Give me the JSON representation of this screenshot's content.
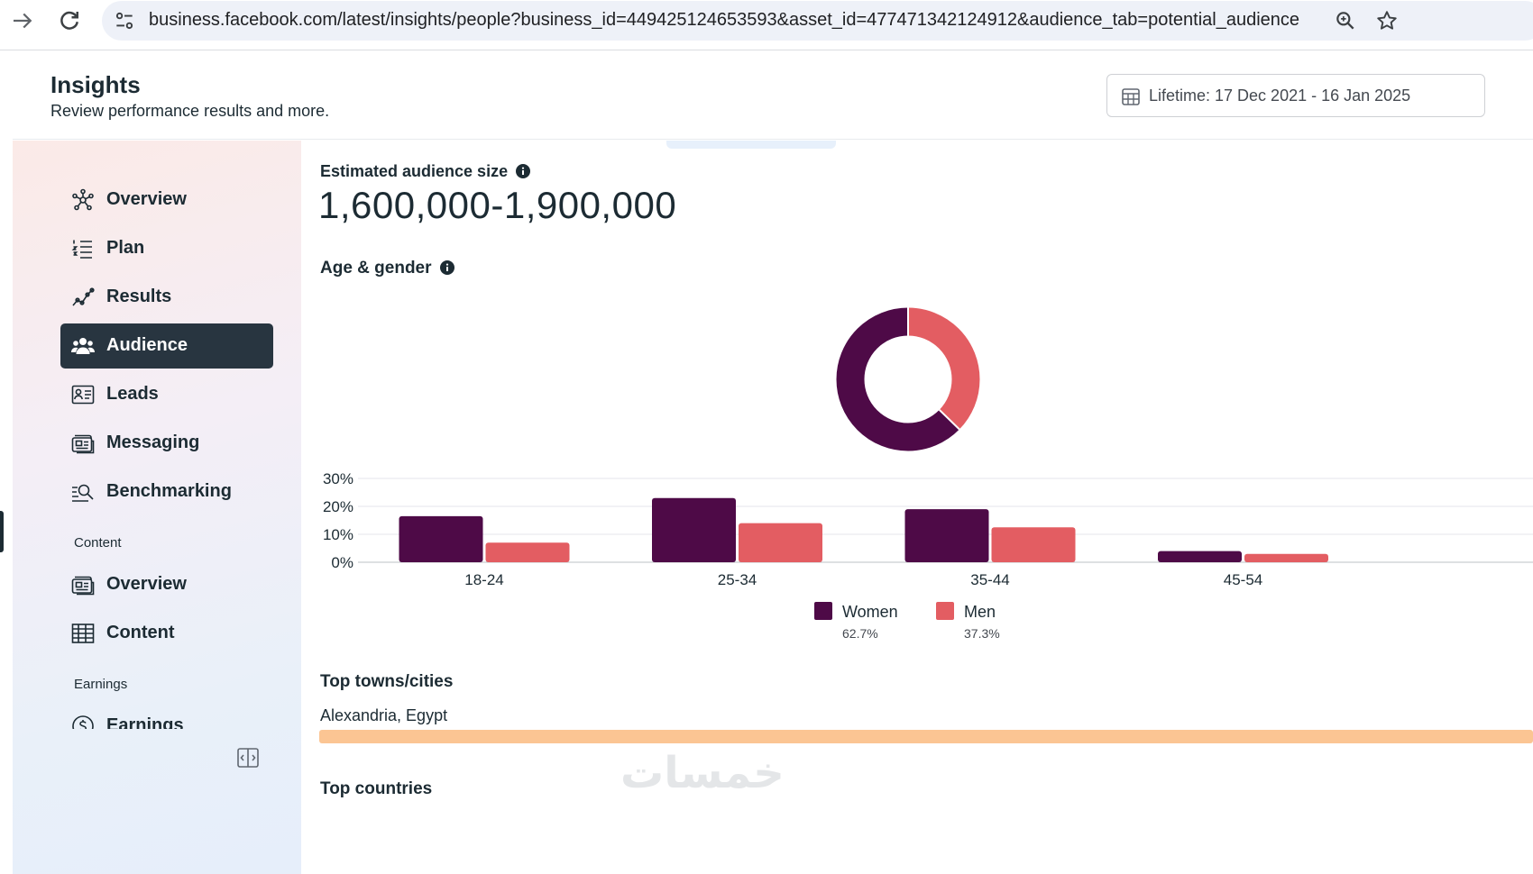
{
  "browser": {
    "url": "business.facebook.com/latest/insights/people?business_id=449425124653593&asset_id=477471342124912&audience_tab=potential_audience"
  },
  "header": {
    "title": "Insights",
    "subtitle": "Review performance results and more.",
    "date_range": "Lifetime: 17 Dec 2021 - 16 Jan 2025"
  },
  "sidebar": {
    "items": [
      {
        "label": "Overview",
        "icon": "overview-network-icon"
      },
      {
        "label": "Plan",
        "icon": "plan-list-icon"
      },
      {
        "label": "Results",
        "icon": "results-trend-icon"
      },
      {
        "label": "Audience",
        "icon": "audience-people-icon",
        "active": true
      },
      {
        "label": "Leads",
        "icon": "leads-contact-card-icon"
      },
      {
        "label": "Messaging",
        "icon": "messaging-icon"
      },
      {
        "label": "Benchmarking",
        "icon": "benchmarking-search-icon"
      }
    ],
    "content_section": "Content",
    "content_items": [
      {
        "label": "Overview",
        "icon": "content-overview-icon"
      },
      {
        "label": "Content",
        "icon": "content-table-icon"
      }
    ],
    "earnings_section": "Earnings",
    "earnings_items": [
      {
        "label": "Earnings",
        "icon": "earnings-coin-icon"
      }
    ]
  },
  "audience": {
    "estimated_label": "Estimated audience size",
    "estimated_value": "1,600,000-1,900,000",
    "age_gender_label": "Age & gender",
    "top_towns_label": "Top towns/cities",
    "top_towns": [
      {
        "name": "Alexandria, Egypt"
      }
    ],
    "top_countries_label": "Top countries"
  },
  "colors": {
    "women": "#4e0a47",
    "men": "#e35d62",
    "town_bar": "#fbc593",
    "active_nav": "#283540"
  },
  "watermark": "خمسات",
  "chart_data": [
    {
      "type": "pie",
      "title": "Age & gender",
      "categories": [
        "Women",
        "Men"
      ],
      "values": [
        62.7,
        37.3
      ]
    },
    {
      "type": "bar",
      "title": "Age & gender",
      "categories": [
        "18-24",
        "25-34",
        "35-44",
        "45-54"
      ],
      "series": [
        {
          "name": "Women",
          "pct_label": "62.7%",
          "values": [
            16.5,
            23,
            19,
            4
          ]
        },
        {
          "name": "Men",
          "pct_label": "37.3%",
          "values": [
            7,
            14,
            12.5,
            3
          ]
        }
      ],
      "yticks": [
        "0%",
        "10%",
        "20%",
        "30%"
      ],
      "ylim": [
        0,
        30
      ],
      "xlabel": "",
      "ylabel": ""
    }
  ]
}
